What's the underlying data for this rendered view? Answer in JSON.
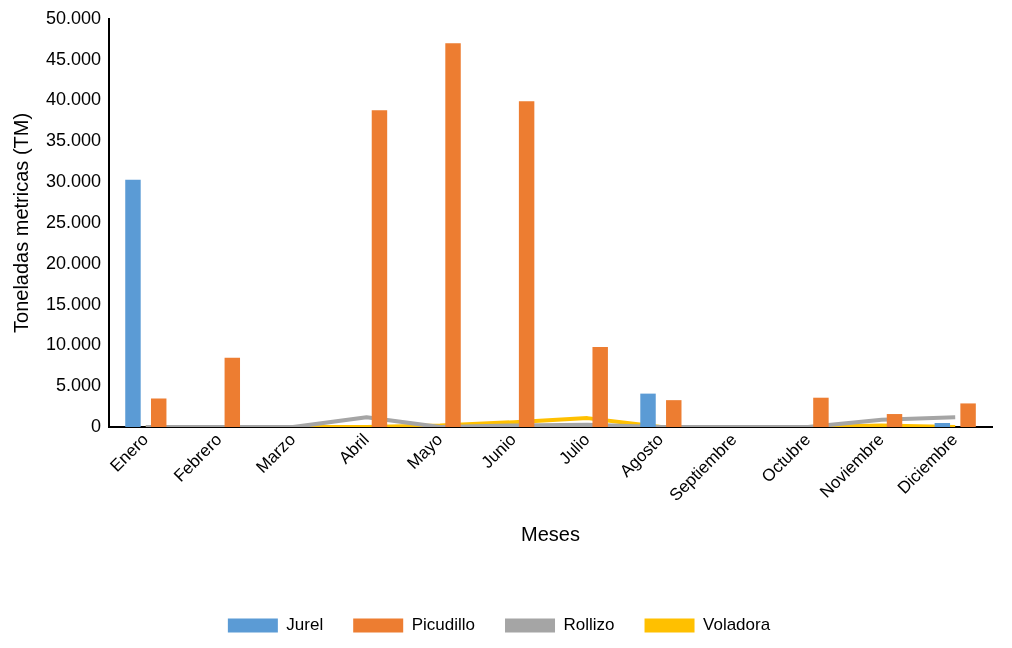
{
  "chart_data": {
    "type": "bar",
    "xlabel": "Meses",
    "ylabel": "Toneladas metricas (TM)",
    "categories": [
      "Enero",
      "Febrero",
      "Marzo",
      "Abril",
      "Mayo",
      "Junio",
      "Julio",
      "Agosto",
      "Septiembre",
      "Octubre",
      "Noviembre",
      "Diciembre"
    ],
    "series": [
      {
        "name": "Jurel",
        "color": "#5b9bd5",
        "values": [
          30300,
          0,
          0,
          0,
          0,
          0,
          0,
          4100,
          0,
          0,
          0,
          500
        ]
      },
      {
        "name": "Picudillo",
        "color": "#ed7d31",
        "values": [
          3500,
          8500,
          0,
          38800,
          47000,
          39900,
          9800,
          3300,
          0,
          3600,
          1600,
          2900
        ]
      },
      {
        "name": "Rollizo",
        "type": "line",
        "color": "#a5a5a5",
        "values": [
          0,
          0,
          0,
          1200,
          0,
          200,
          300,
          0,
          0,
          0,
          900,
          1200
        ]
      },
      {
        "name": "Voladora",
        "type": "line",
        "color": "#ffc000",
        "values": [
          0,
          0,
          0,
          0,
          200,
          600,
          1100,
          0,
          0,
          0,
          200,
          0
        ]
      }
    ],
    "ylim": [
      0,
      50000
    ],
    "yticks": [
      0,
      {
        "value": 5000,
        "label": "5.000"
      },
      {
        "value": 10000,
        "label": "10.000"
      },
      {
        "value": 15000,
        "label": "15.000"
      },
      {
        "value": 20000,
        "label": "20.000"
      },
      {
        "value": 25000,
        "label": "25.000"
      },
      {
        "value": 30000,
        "label": "30.000"
      },
      {
        "value": 35000,
        "label": "35.000"
      },
      {
        "value": 40000,
        "label": "40.000"
      },
      {
        "value": 45000,
        "label": "45.000"
      },
      {
        "value": 50000,
        "label": "50.000"
      }
    ],
    "grid": false,
    "legend": "bottom",
    "marker": "none"
  }
}
